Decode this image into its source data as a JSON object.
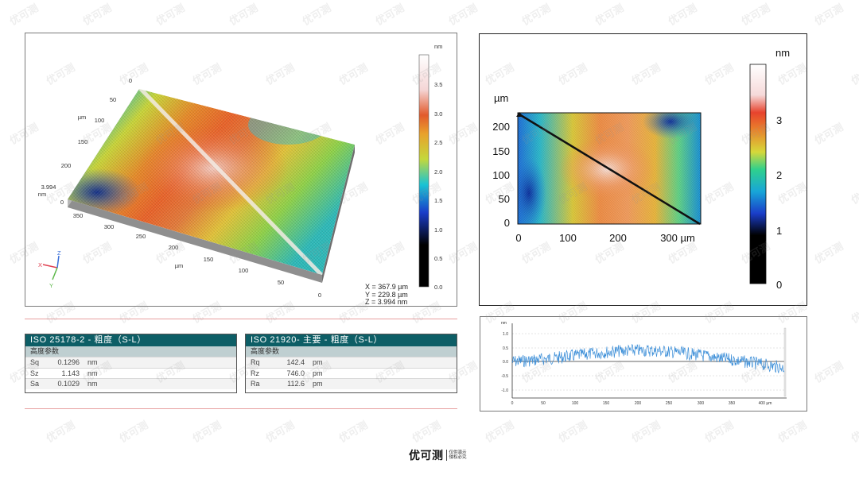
{
  "view3d": {
    "y_ticks": [
      "0",
      "50",
      "100",
      "150",
      "200"
    ],
    "y_unit": "µm",
    "x_ticks": [
      "350",
      "300",
      "250",
      "200",
      "150",
      "100",
      "50",
      "0"
    ],
    "x_unit": "µm",
    "z_value": "3.994",
    "z_unit": "nm",
    "axis_x": "X",
    "axis_y": "Y",
    "axis_z": "Z",
    "colorbar_unit": "nm",
    "colorbar_ticks": [
      "3.5",
      "3.0",
      "2.5",
      "2.0",
      "1.5",
      "1.0",
      "0.5",
      "0.0"
    ],
    "readout_x": "X = 367.9 µm",
    "readout_y": "Y = 229.8 µm",
    "readout_z": "Z = 3.994 nm"
  },
  "view2d": {
    "y_unit": "µm",
    "y_ticks": [
      "200",
      "150",
      "100",
      "50",
      "0"
    ],
    "x_ticks": [
      "0",
      "100",
      "200",
      "300 µm"
    ],
    "colorbar_unit": "nm",
    "colorbar_ticks": [
      "3",
      "2",
      "1",
      "0"
    ]
  },
  "profile": {
    "y_unit": "nm",
    "y_ticks": [
      "1.0",
      "0.5",
      "0.0",
      "-0.5",
      "-1.0"
    ],
    "x_ticks": [
      "0",
      "50",
      "100",
      "150",
      "200",
      "250",
      "300",
      "350",
      "400 µm"
    ]
  },
  "table1": {
    "title": "ISO 25178-2 - 粗度（S-L）",
    "subtitle": "高度参数",
    "rows": [
      {
        "name": "Sq",
        "value": "0.1296",
        "unit": "nm"
      },
      {
        "name": "Sz",
        "value": "1.143",
        "unit": "nm"
      },
      {
        "name": "Sa",
        "value": "0.1029",
        "unit": "nm"
      }
    ]
  },
  "table2": {
    "title": "ISO 21920- 主要 - 粗度（S-L）",
    "subtitle": "高度参数",
    "rows": [
      {
        "name": "Rq",
        "value": "142.4",
        "unit": "pm"
      },
      {
        "name": "Rz",
        "value": "746.0",
        "unit": "pm"
      },
      {
        "name": "Ra",
        "value": "112.6",
        "unit": "pm"
      }
    ]
  },
  "watermark": "优可测",
  "logo": {
    "name": "优可测",
    "line1": "仅供演示",
    "line2": "侵权必究"
  }
}
